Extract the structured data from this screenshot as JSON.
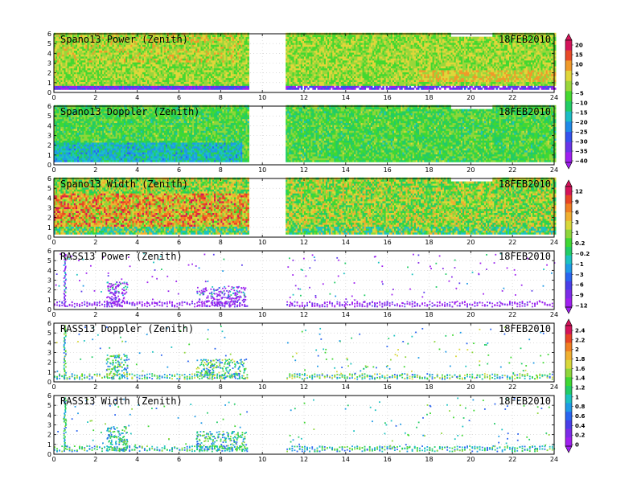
{
  "colors": {
    "rainbow": [
      "#a020f0",
      "#7d2be8",
      "#4a3ee8",
      "#2a64f0",
      "#1f9ae6",
      "#1cc2c0",
      "#22cc66",
      "#3fd833",
      "#8ed63a",
      "#d8d83a",
      "#f0b030",
      "#f07f22",
      "#e84425",
      "#d4145a"
    ],
    "power": [
      "#a020f0",
      "#6a35e8",
      "#3552ee",
      "#1f89e8",
      "#1cbcc6",
      "#22cc66",
      "#45d830",
      "#9ad63a",
      "#e0d63a",
      "#f09a2a",
      "#e84a28",
      "#d4145a"
    ],
    "frame": "#000000",
    "grid": "#c8c8c8"
  },
  "figure": {
    "date": "18FEB2010"
  },
  "chart_data": [
    {
      "type": "heatmap",
      "title": "Spano13 Power (Zenith)",
      "date": "18FEB2010",
      "xlim": [
        0,
        24
      ],
      "ylim": [
        0,
        6
      ],
      "xticks": [
        0,
        2,
        4,
        6,
        8,
        10,
        12,
        14,
        16,
        18,
        20,
        22,
        24
      ],
      "yticks": [
        0,
        1,
        2,
        3,
        4,
        5,
        6
      ],
      "data_gaps": [
        [
          9.3,
          11.1
        ]
      ],
      "colorbar": {
        "ticks": [
          "20",
          "15",
          "10",
          "5",
          "0",
          "−5",
          "−10",
          "−15",
          "−20",
          "−25",
          "−30",
          "−35",
          "−40"
        ]
      }
    },
    {
      "type": "heatmap",
      "title": "Spano13 Doppler (Zenith)",
      "date": "18FEB2010",
      "xlim": [
        0,
        24
      ],
      "ylim": [
        0,
        6
      ],
      "xticks": [
        0,
        2,
        4,
        6,
        8,
        10,
        12,
        14,
        16,
        18,
        20,
        22,
        24
      ],
      "yticks": [
        0,
        1,
        2,
        3,
        4,
        5,
        6
      ],
      "data_gaps": [
        [
          9.3,
          11.1
        ]
      ]
    },
    {
      "type": "heatmap",
      "title": "Spano13 Width (Zenith)",
      "date": "18FEB2010",
      "xlim": [
        0,
        24
      ],
      "ylim": [
        0,
        6
      ],
      "xticks": [
        0,
        2,
        4,
        6,
        8,
        10,
        12,
        14,
        16,
        18,
        20,
        22,
        24
      ],
      "yticks": [
        0,
        1,
        2,
        3,
        4,
        5,
        6
      ],
      "data_gaps": [
        [
          9.3,
          11.1
        ]
      ],
      "colorbar": {
        "ticks": [
          "12",
          "9",
          "6",
          "3",
          "1",
          "0.2",
          "−0.2",
          "−1",
          "−3",
          "−6",
          "−9",
          "−12"
        ]
      }
    },
    {
      "type": "heatmap",
      "title": "RASS13 Power (Zenith)",
      "date": "18FEB2010",
      "xlim": [
        0,
        24
      ],
      "ylim": [
        0,
        6
      ],
      "xticks": [
        0,
        2,
        4,
        6,
        8,
        10,
        12,
        14,
        16,
        18,
        20,
        22,
        24
      ],
      "yticks": [
        0,
        1,
        2,
        3,
        4,
        5,
        6
      ],
      "data_gaps": [
        [
          9.3,
          11.1
        ]
      ]
    },
    {
      "type": "heatmap",
      "title": "RASS13 Doppler (Zenith)",
      "date": "18FEB2010",
      "xlim": [
        0,
        24
      ],
      "ylim": [
        0,
        6
      ],
      "xticks": [
        0,
        2,
        4,
        6,
        8,
        10,
        12,
        14,
        16,
        18,
        20,
        22,
        24
      ],
      "yticks": [
        0,
        1,
        2,
        3,
        4,
        5,
        6
      ],
      "data_gaps": [
        [
          9.3,
          11.1
        ]
      ],
      "colorbar": {
        "ticks": [
          "2.4",
          "2.2",
          "2",
          "1.8",
          "1.6",
          "1.4",
          "1.2",
          "1",
          "0.8",
          "0.6",
          "0.4",
          "0.2",
          "0"
        ]
      }
    },
    {
      "type": "heatmap",
      "title": "RASS13 Width (Zenith)",
      "date": "18FEB2010",
      "xlim": [
        0,
        24
      ],
      "ylim": [
        0,
        6
      ],
      "xticks": [
        0,
        2,
        4,
        6,
        8,
        10,
        12,
        14,
        16,
        18,
        20,
        22,
        24
      ],
      "yticks": [
        0,
        1,
        2,
        3,
        4,
        5,
        6
      ],
      "data_gaps": [
        [
          9.3,
          11.1
        ]
      ]
    }
  ]
}
